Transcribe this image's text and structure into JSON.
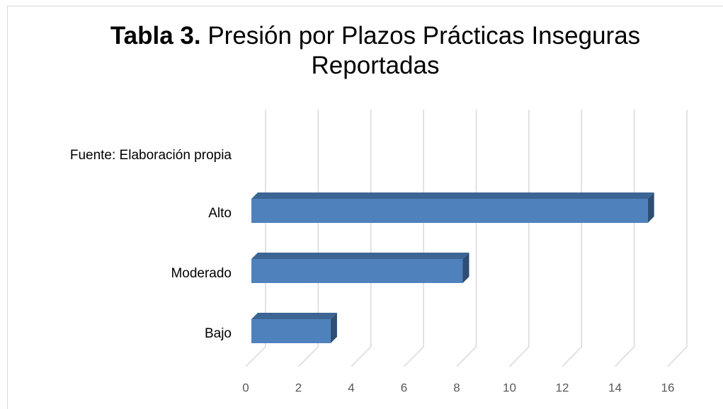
{
  "chart_data": {
    "type": "bar3d_horizontal",
    "title_prefix": "Tabla 3.",
    "title": "Presión por Plazos Prácticas Inseguras Reportadas",
    "source": "Fuente: Elaboración propia",
    "categories": [
      "Bajo",
      "Moderado",
      "Alto"
    ],
    "values": [
      3,
      8,
      15
    ],
    "color": "#4f81bd",
    "xlim": [
      0,
      16
    ],
    "xticks": [
      0,
      2,
      4,
      6,
      8,
      10,
      12,
      14,
      16
    ],
    "grid": true
  }
}
